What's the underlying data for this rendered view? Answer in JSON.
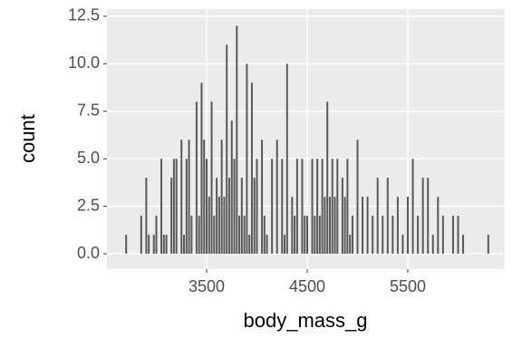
{
  "chart_data": {
    "type": "bar",
    "x_label": "body_mass_g",
    "y_label": "count",
    "color": "#595959",
    "grid": true,
    "x": [
      2700,
      2850,
      2900,
      2925,
      2975,
      3000,
      3050,
      3075,
      3100,
      3150,
      3175,
      3200,
      3250,
      3275,
      3300,
      3325,
      3350,
      3400,
      3425,
      3450,
      3475,
      3500,
      3525,
      3550,
      3575,
      3600,
      3625,
      3650,
      3675,
      3700,
      3725,
      3750,
      3775,
      3800,
      3825,
      3850,
      3875,
      3900,
      3925,
      3950,
      3975,
      4000,
      4050,
      4075,
      4100,
      4150,
      4200,
      4250,
      4275,
      4300,
      4350,
      4375,
      4400,
      4450,
      4475,
      4500,
      4550,
      4575,
      4600,
      4625,
      4650,
      4675,
      4700,
      4725,
      4750,
      4775,
      4800,
      4850,
      4875,
      4900,
      4925,
      4950,
      5000,
      5050,
      5100,
      5150,
      5200,
      5250,
      5300,
      5350,
      5400,
      5450,
      5500,
      5550,
      5600,
      5650,
      5700,
      5750,
      5800,
      5850,
      5950,
      6000,
      6050,
      6300
    ],
    "values": [
      1,
      2,
      4,
      1,
      1,
      2,
      5,
      1,
      1,
      4,
      5,
      5,
      6,
      1,
      5,
      6,
      2,
      8,
      2,
      9,
      6,
      5,
      3,
      8,
      2,
      4,
      3,
      6,
      3,
      11,
      4,
      7,
      5,
      12,
      2,
      4,
      2,
      10,
      1,
      9,
      4,
      5,
      6,
      2,
      1,
      5,
      6,
      5,
      1,
      10,
      3,
      2,
      5,
      5,
      2,
      2,
      5,
      2,
      5,
      2,
      5,
      3,
      8,
      3,
      5,
      3,
      5,
      4,
      3,
      5,
      1,
      2,
      6,
      3,
      3,
      2,
      4,
      2,
      4,
      2,
      3,
      1,
      3,
      5,
      2,
      4,
      4,
      1,
      3,
      2,
      2,
      2,
      1,
      1
    ],
    "xlim": [
      2509,
      6464
    ],
    "xticks": [
      3500,
      4500,
      5500
    ],
    "ylim": [
      -0.81,
      12.88
    ],
    "yticks": [
      0.0,
      2.5,
      5.0,
      7.5,
      10.0,
      12.5
    ]
  }
}
